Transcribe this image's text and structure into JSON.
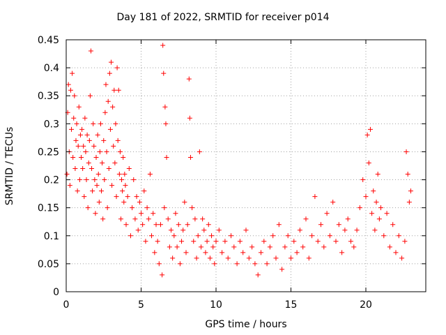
{
  "chart_data": {
    "type": "scatter",
    "title": "Day 181 of 2022, SRMTID for receiver p014",
    "xlabel": "GPS time / hours",
    "ylabel": "SRMTID / TECUs",
    "xlim": [
      0,
      24
    ],
    "ylim": [
      0,
      0.45
    ],
    "xticks": [
      0,
      5,
      10,
      15,
      20
    ],
    "yticks": [
      0,
      0.05,
      0.1,
      0.15,
      0.2,
      0.25,
      0.3,
      0.35,
      0.4,
      0.45
    ],
    "xtick_labels": [
      "0",
      "5",
      "10",
      "15",
      "20"
    ],
    "ytick_labels": [
      "0",
      "0.05",
      "0.1",
      "0.15",
      "0.2",
      "0.25",
      "0.3",
      "0.35",
      "0.4",
      "0.45"
    ],
    "grid": true,
    "marker": "+",
    "color": "#ff0000",
    "series": [
      {
        "name": "SRMTID",
        "points": [
          [
            0.05,
            0.21
          ],
          [
            0.1,
            0.32
          ],
          [
            0.15,
            0.37
          ],
          [
            0.2,
            0.25
          ],
          [
            0.25,
            0.19
          ],
          [
            0.3,
            0.36
          ],
          [
            0.35,
            0.29
          ],
          [
            0.4,
            0.39
          ],
          [
            0.45,
            0.24
          ],
          [
            0.5,
            0.31
          ],
          [
            0.55,
            0.35
          ],
          [
            0.6,
            0.22
          ],
          [
            0.65,
            0.27
          ],
          [
            0.7,
            0.3
          ],
          [
            0.75,
            0.18
          ],
          [
            0.8,
            0.26
          ],
          [
            0.85,
            0.33
          ],
          [
            0.9,
            0.2
          ],
          [
            0.95,
            0.28
          ],
          [
            1.0,
            0.24
          ],
          [
            1.05,
            0.29
          ],
          [
            1.1,
            0.22
          ],
          [
            1.15,
            0.26
          ],
          [
            1.2,
            0.17
          ],
          [
            1.25,
            0.31
          ],
          [
            1.3,
            0.25
          ],
          [
            1.35,
            0.2
          ],
          [
            1.4,
            0.28
          ],
          [
            1.45,
            0.15
          ],
          [
            1.5,
            0.23
          ],
          [
            1.55,
            0.27
          ],
          [
            1.6,
            0.35
          ],
          [
            1.65,
            0.43
          ],
          [
            1.7,
            0.22
          ],
          [
            1.75,
            0.18
          ],
          [
            1.8,
            0.3
          ],
          [
            1.85,
            0.26
          ],
          [
            1.9,
            0.2
          ],
          [
            1.95,
            0.14
          ],
          [
            2.0,
            0.24
          ],
          [
            2.05,
            0.19
          ],
          [
            2.1,
            0.28
          ],
          [
            2.15,
            0.21
          ],
          [
            2.2,
            0.16
          ],
          [
            2.25,
            0.25
          ],
          [
            2.3,
            0.3
          ],
          [
            2.35,
            0.18
          ],
          [
            2.4,
            0.23
          ],
          [
            2.45,
            0.13
          ],
          [
            2.5,
            0.27
          ],
          [
            2.55,
            0.2
          ],
          [
            2.6,
            0.32
          ],
          [
            2.65,
            0.37
          ],
          [
            2.7,
            0.25
          ],
          [
            2.75,
            0.15
          ],
          [
            2.8,
            0.34
          ],
          [
            2.85,
            0.22
          ],
          [
            2.9,
            0.39
          ],
          [
            2.95,
            0.29
          ],
          [
            3.0,
            0.41
          ],
          [
            3.05,
            0.19
          ],
          [
            3.1,
            0.33
          ],
          [
            3.15,
            0.26
          ],
          [
            3.2,
            0.36
          ],
          [
            3.25,
            0.23
          ],
          [
            3.3,
            0.3
          ],
          [
            3.35,
            0.17
          ],
          [
            3.4,
            0.4
          ],
          [
            3.45,
            0.27
          ],
          [
            3.5,
            0.36
          ],
          [
            3.55,
            0.21
          ],
          [
            3.6,
            0.25
          ],
          [
            3.65,
            0.13
          ],
          [
            3.7,
            0.2
          ],
          [
            3.75,
            0.18
          ],
          [
            3.8,
            0.24
          ],
          [
            3.85,
            0.16
          ],
          [
            3.9,
            0.21
          ],
          [
            3.95,
            0.19
          ],
          [
            4.0,
            0.12
          ],
          [
            4.1,
            0.17
          ],
          [
            4.2,
            0.22
          ],
          [
            4.3,
            0.1
          ],
          [
            4.4,
            0.15
          ],
          [
            4.5,
            0.2
          ],
          [
            4.6,
            0.13
          ],
          [
            4.7,
            0.17
          ],
          [
            4.8,
            0.11
          ],
          [
            4.9,
            0.16
          ],
          [
            5.0,
            0.14
          ],
          [
            5.1,
            0.12
          ],
          [
            5.2,
            0.18
          ],
          [
            5.3,
            0.09
          ],
          [
            5.4,
            0.15
          ],
          [
            5.5,
            0.13
          ],
          [
            5.6,
            0.21
          ],
          [
            5.7,
            0.1
          ],
          [
            5.8,
            0.14
          ],
          [
            5.9,
            0.07
          ],
          [
            6.0,
            0.12
          ],
          [
            6.1,
            0.09
          ],
          [
            6.2,
            0.05
          ],
          [
            6.3,
            0.12
          ],
          [
            6.4,
            0.03
          ],
          [
            6.45,
            0.44
          ],
          [
            6.5,
            0.39
          ],
          [
            6.55,
            0.15
          ],
          [
            6.6,
            0.33
          ],
          [
            6.65,
            0.3
          ],
          [
            6.7,
            0.24
          ],
          [
            6.8,
            0.13
          ],
          [
            6.9,
            0.08
          ],
          [
            7.0,
            0.11
          ],
          [
            7.1,
            0.06
          ],
          [
            7.2,
            0.1
          ],
          [
            7.3,
            0.14
          ],
          [
            7.4,
            0.08
          ],
          [
            7.5,
            0.12
          ],
          [
            7.6,
            0.05
          ],
          [
            7.7,
            0.09
          ],
          [
            7.8,
            0.11
          ],
          [
            7.9,
            0.16
          ],
          [
            8.0,
            0.07
          ],
          [
            8.1,
            0.12
          ],
          [
            8.2,
            0.38
          ],
          [
            8.25,
            0.31
          ],
          [
            8.3,
            0.24
          ],
          [
            8.4,
            0.15
          ],
          [
            8.5,
            0.09
          ],
          [
            8.6,
            0.13
          ],
          [
            8.7,
            0.06
          ],
          [
            8.8,
            0.1
          ],
          [
            8.9,
            0.25
          ],
          [
            9.0,
            0.08
          ],
          [
            9.1,
            0.13
          ],
          [
            9.2,
            0.11
          ],
          [
            9.3,
            0.07
          ],
          [
            9.4,
            0.09
          ],
          [
            9.5,
            0.12
          ],
          [
            9.6,
            0.06
          ],
          [
            9.7,
            0.1
          ],
          [
            9.8,
            0.08
          ],
          [
            9.9,
            0.05
          ],
          [
            10.0,
            0.09
          ],
          [
            10.2,
            0.11
          ],
          [
            10.4,
            0.07
          ],
          [
            10.6,
            0.09
          ],
          [
            10.8,
            0.06
          ],
          [
            11.0,
            0.1
          ],
          [
            11.2,
            0.08
          ],
          [
            11.4,
            0.05
          ],
          [
            11.6,
            0.09
          ],
          [
            11.8,
            0.07
          ],
          [
            12.0,
            0.11
          ],
          [
            12.2,
            0.06
          ],
          [
            12.4,
            0.08
          ],
          [
            12.6,
            0.05
          ],
          [
            12.8,
            0.03
          ],
          [
            13.0,
            0.07
          ],
          [
            13.2,
            0.09
          ],
          [
            13.4,
            0.05
          ],
          [
            13.6,
            0.08
          ],
          [
            13.8,
            0.1
          ],
          [
            14.0,
            0.06
          ],
          [
            14.2,
            0.12
          ],
          [
            14.4,
            0.04
          ],
          [
            14.6,
            0.08
          ],
          [
            14.8,
            0.1
          ],
          [
            15.0,
            0.06
          ],
          [
            15.2,
            0.09
          ],
          [
            15.4,
            0.07
          ],
          [
            15.6,
            0.11
          ],
          [
            15.8,
            0.08
          ],
          [
            16.0,
            0.13
          ],
          [
            16.2,
            0.06
          ],
          [
            16.4,
            0.1
          ],
          [
            16.6,
            0.17
          ],
          [
            16.8,
            0.09
          ],
          [
            17.0,
            0.12
          ],
          [
            17.2,
            0.08
          ],
          [
            17.4,
            0.14
          ],
          [
            17.6,
            0.1
          ],
          [
            17.8,
            0.16
          ],
          [
            18.0,
            0.09
          ],
          [
            18.2,
            0.12
          ],
          [
            18.4,
            0.07
          ],
          [
            18.6,
            0.11
          ],
          [
            18.8,
            0.13
          ],
          [
            19.0,
            0.09
          ],
          [
            19.2,
            0.08
          ],
          [
            19.4,
            0.11
          ],
          [
            19.6,
            0.15
          ],
          [
            19.8,
            0.2
          ],
          [
            20.0,
            0.17
          ],
          [
            20.1,
            0.28
          ],
          [
            20.2,
            0.23
          ],
          [
            20.3,
            0.29
          ],
          [
            20.4,
            0.14
          ],
          [
            20.5,
            0.18
          ],
          [
            20.6,
            0.11
          ],
          [
            20.7,
            0.16
          ],
          [
            20.8,
            0.21
          ],
          [
            20.9,
            0.13
          ],
          [
            21.0,
            0.15
          ],
          [
            21.2,
            0.1
          ],
          [
            21.4,
            0.14
          ],
          [
            21.6,
            0.08
          ],
          [
            21.8,
            0.12
          ],
          [
            22.0,
            0.07
          ],
          [
            22.2,
            0.1
          ],
          [
            22.4,
            0.06
          ],
          [
            22.6,
            0.09
          ],
          [
            22.7,
            0.25
          ],
          [
            22.8,
            0.21
          ],
          [
            22.9,
            0.16
          ],
          [
            23.0,
            0.18
          ]
        ]
      }
    ]
  }
}
